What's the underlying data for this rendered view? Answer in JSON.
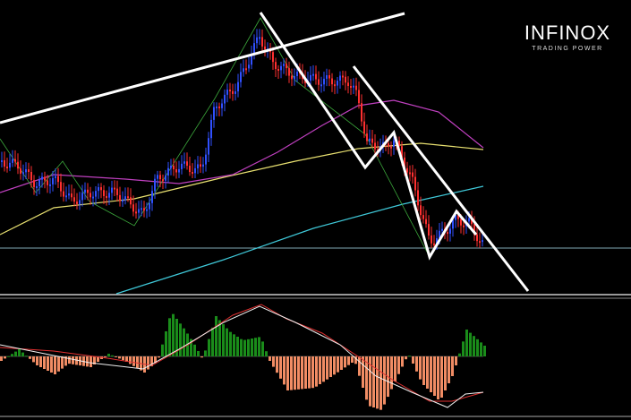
{
  "logo": {
    "name": "INFINOX",
    "tagline": "TRADING POWER"
  }
}
